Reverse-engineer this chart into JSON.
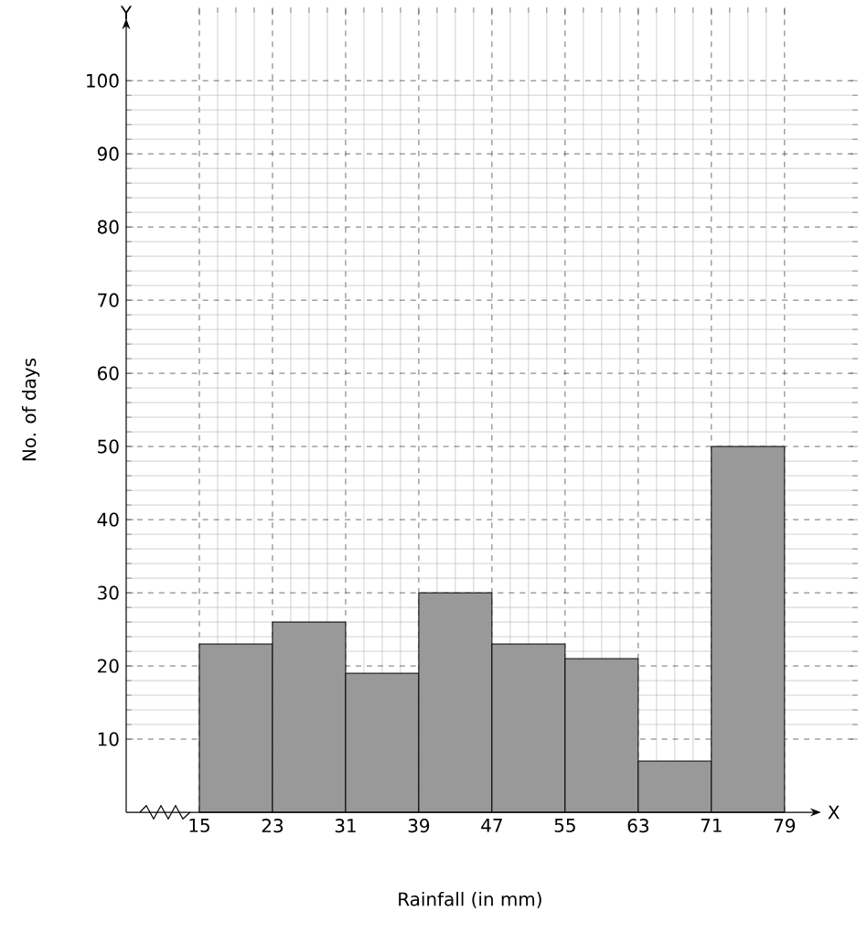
{
  "chart_data": {
    "type": "histogram",
    "xlabel": "Rainfall (in mm)",
    "ylabel": "No. of days",
    "bins": [
      15,
      23,
      31,
      39,
      47,
      55,
      63,
      71,
      79
    ],
    "values": [
      23,
      26,
      19,
      30,
      23,
      21,
      7,
      50
    ],
    "color": "#999999",
    "xlim": [
      7,
      87
    ],
    "ylim": [
      0,
      110
    ],
    "xticks": [
      15,
      23,
      31,
      39,
      47,
      55,
      63,
      71,
      79
    ],
    "yticks": [
      10,
      20,
      30,
      40,
      50,
      60,
      70,
      80,
      90,
      100
    ],
    "grid": true,
    "annotations": [
      "X",
      "Y"
    ]
  }
}
